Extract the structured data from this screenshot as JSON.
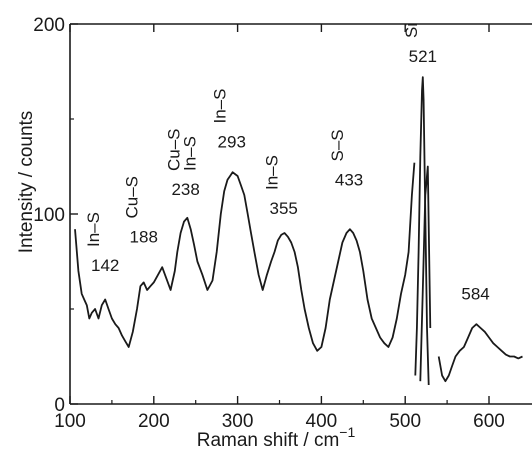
{
  "chart_data": {
    "type": "line",
    "xlabel": "Raman shift / cm",
    "xlabel_superscript": "−1",
    "ylabel": "Intensity / counts",
    "xlim": [
      100,
      640
    ],
    "ylim": [
      0,
      200
    ],
    "xticks": [
      100,
      200,
      300,
      400,
      500,
      600
    ],
    "yticks": [
      0,
      100,
      200
    ],
    "grid": false,
    "series": [
      {
        "x": [
          106,
          110,
          114,
          117,
          120,
          123,
          126,
          130,
          134,
          138,
          142,
          146,
          150,
          154,
          158,
          162,
          166,
          170,
          175,
          180,
          184,
          188,
          192,
          196,
          200,
          205,
          210,
          215,
          220,
          225,
          228,
          232,
          236,
          240,
          244,
          248,
          252,
          258,
          264,
          270,
          275,
          280,
          284,
          288,
          291,
          294,
          297,
          300,
          304,
          308,
          312,
          316,
          320,
          325,
          330,
          335,
          340,
          344,
          348,
          352,
          356,
          360,
          364,
          368,
          372,
          376,
          380,
          385,
          390,
          395,
          400,
          405,
          410,
          415,
          420,
          425,
          430,
          434,
          438,
          442,
          446,
          450,
          455,
          460,
          465,
          470,
          475,
          480,
          485,
          490,
          495,
          500,
          504,
          508,
          511
        ],
        "y": [
          92,
          70,
          58,
          55,
          52,
          45,
          48,
          50,
          45,
          52,
          55,
          50,
          45,
          42,
          40,
          36,
          33,
          30,
          38,
          50,
          62,
          64,
          60,
          62,
          64,
          68,
          72,
          66,
          60,
          70,
          80,
          90,
          96,
          98,
          92,
          84,
          75,
          68,
          60,
          65,
          80,
          100,
          112,
          118,
          120,
          122,
          121,
          120,
          115,
          110,
          100,
          90,
          80,
          68,
          60,
          68,
          75,
          80,
          86,
          89,
          90,
          88,
          85,
          80,
          72,
          60,
          50,
          40,
          32,
          28,
          30,
          40,
          55,
          65,
          75,
          85,
          90,
          92,
          90,
          86,
          80,
          70,
          55,
          45,
          40,
          35,
          32,
          30,
          35,
          45,
          58,
          68,
          80,
          110,
          127
        ]
      },
      {
        "x": [
          512,
          514,
          516,
          518,
          520,
          521,
          522,
          524,
          526,
          528
        ],
        "y": [
          15,
          40,
          80,
          130,
          165,
          172,
          160,
          100,
          40,
          10
        ]
      },
      {
        "x": [
          518,
          521,
          524,
          527,
          530
        ],
        "y": [
          12,
          60,
          110,
          125,
          40
        ]
      },
      {
        "x": [
          540,
          544,
          548,
          552,
          556,
          560,
          565,
          570,
          575,
          580,
          585,
          590,
          595,
          600,
          605,
          610,
          615,
          620,
          625,
          630,
          635,
          640
        ],
        "y": [
          25,
          15,
          12,
          15,
          20,
          25,
          28,
          30,
          35,
          40,
          42,
          40,
          38,
          35,
          32,
          30,
          28,
          26,
          25,
          25,
          24,
          25
        ]
      }
    ],
    "annotations": [
      {
        "label": "In–S",
        "value": "142",
        "x": 142,
        "y": 70,
        "vertical": true
      },
      {
        "label": "Cu–S",
        "value": "188",
        "x": 188,
        "y": 85,
        "vertical": true
      },
      {
        "label": "Cu–S",
        "label2": "In–S",
        "value": "238",
        "x": 238,
        "y": 110,
        "vertical": true
      },
      {
        "label": "In–S",
        "value": "293",
        "x": 293,
        "y": 135,
        "vertical": true
      },
      {
        "label": "In–S",
        "value": "355",
        "x": 355,
        "y": 100,
        "vertical": true
      },
      {
        "label": "S–S",
        "value": "433",
        "x": 433,
        "y": 115,
        "vertical": true
      },
      {
        "label": "Si",
        "value": "521",
        "x": 521,
        "y": 180,
        "vertical": true
      },
      {
        "label": "",
        "value": "584",
        "x": 584,
        "y": 55,
        "vertical": false
      }
    ]
  }
}
